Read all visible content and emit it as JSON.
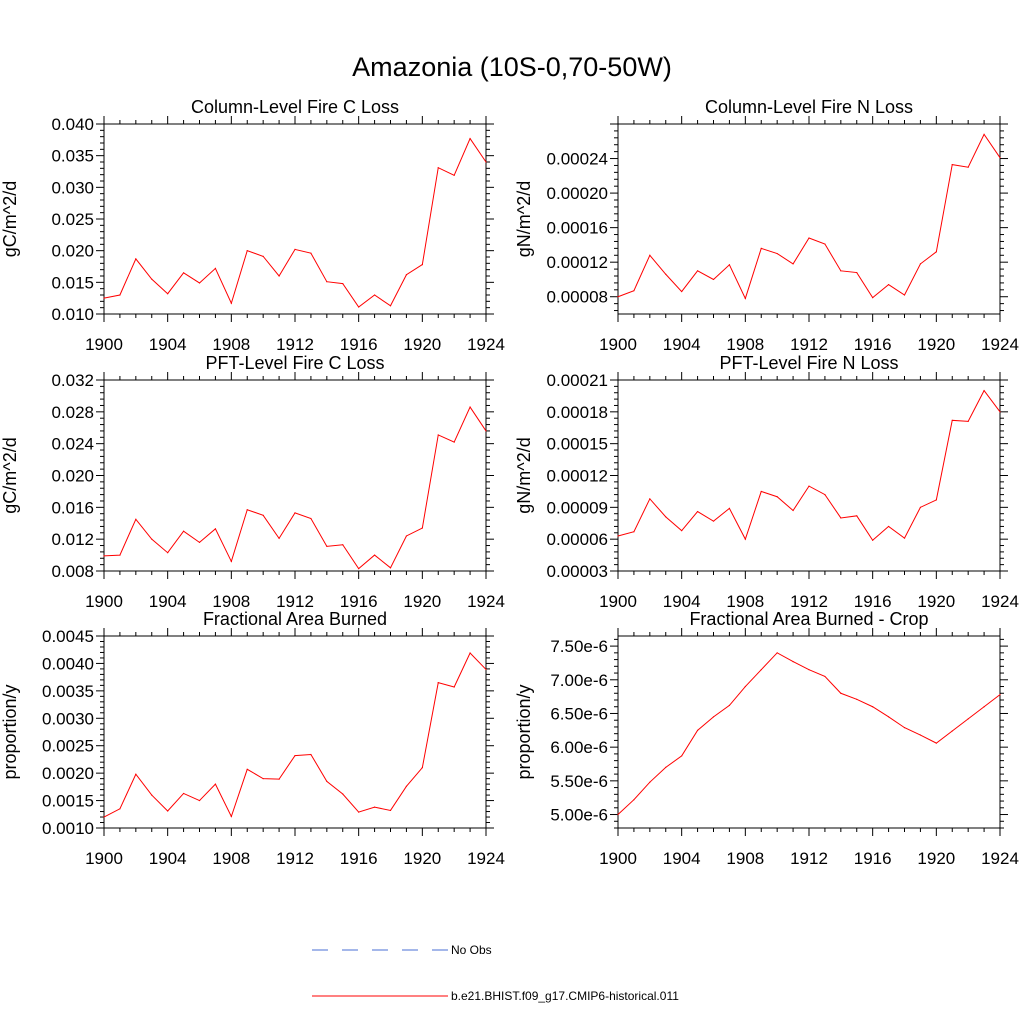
{
  "page": {
    "title": "Amazonia (10S-0,70-50W)"
  },
  "colors": {
    "model_line": "#ff0000",
    "obs_line": "#4a6fd6",
    "frame": "#000000"
  },
  "legend": {
    "items": [
      {
        "label": "No Obs",
        "style": "dashed",
        "color": "#4a6fd6"
      },
      {
        "label": "b.e21.BHIST.f09_g17.CMIP6-historical.011",
        "style": "solid",
        "color": "#ff0000"
      }
    ]
  },
  "chart_data": [
    {
      "type": "line",
      "title": "Column-Level Fire C Loss",
      "ylabel": "gC/m^2/d",
      "xlabel": "",
      "xlim": [
        1900,
        1924
      ],
      "ylim": [
        0.01,
        0.04
      ],
      "xticks": [
        "1900",
        "1904",
        "1908",
        "1912",
        "1916",
        "1920",
        "1924"
      ],
      "yticks": [
        "0.010",
        "0.015",
        "0.020",
        "0.025",
        "0.030",
        "0.035",
        "0.040"
      ],
      "x": [
        1900,
        1901,
        1902,
        1903,
        1904,
        1905,
        1906,
        1907,
        1908,
        1909,
        1910,
        1911,
        1912,
        1913,
        1914,
        1915,
        1916,
        1917,
        1918,
        1919,
        1920,
        1921,
        1922,
        1923,
        1924
      ],
      "series": [
        {
          "name": "b.e21.BHIST.f09_g17.CMIP6-historical.011",
          "values": [
            0.0125,
            0.013,
            0.0187,
            0.0155,
            0.0132,
            0.0165,
            0.0149,
            0.0172,
            0.0117,
            0.02,
            0.0191,
            0.016,
            0.0202,
            0.0196,
            0.0151,
            0.0148,
            0.0111,
            0.013,
            0.0113,
            0.0162,
            0.0178,
            0.0331,
            0.0319,
            0.0377,
            0.034
          ]
        }
      ]
    },
    {
      "type": "line",
      "title": "Column-Level Fire N Loss",
      "ylabel": "gN/m^2/d",
      "xlabel": "",
      "xlim": [
        1900,
        1924
      ],
      "ylim": [
        6e-05,
        0.00028
      ],
      "xticks": [
        "1900",
        "1904",
        "1908",
        "1912",
        "1916",
        "1920",
        "1924"
      ],
      "yticks": [
        "0.00008",
        "0.00012",
        "0.00016",
        "0.00020",
        "0.00024"
      ],
      "x": [
        1900,
        1901,
        1902,
        1903,
        1904,
        1905,
        1906,
        1907,
        1908,
        1909,
        1910,
        1911,
        1912,
        1913,
        1914,
        1915,
        1916,
        1917,
        1918,
        1919,
        1920,
        1921,
        1922,
        1923,
        1924
      ],
      "series": [
        {
          "name": "b.e21.BHIST.f09_g17.CMIP6-historical.011",
          "values": [
            8e-05,
            8.7e-05,
            0.000128,
            0.000106,
            8.6e-05,
            0.00011,
            0.0001,
            0.000117,
            7.8e-05,
            0.000136,
            0.00013,
            0.000118,
            0.000148,
            0.000141,
            0.00011,
            0.000108,
            7.9e-05,
            9.4e-05,
            8.2e-05,
            0.000118,
            0.000132,
            0.000233,
            0.00023,
            0.000268,
            0.000241
          ]
        }
      ]
    },
    {
      "type": "line",
      "title": "PFT-Level Fire C Loss",
      "ylabel": "gC/m^2/d",
      "xlabel": "",
      "xlim": [
        1900,
        1924
      ],
      "ylim": [
        0.008,
        0.032
      ],
      "xticks": [
        "1900",
        "1904",
        "1908",
        "1912",
        "1916",
        "1920",
        "1924"
      ],
      "yticks": [
        "0.008",
        "0.012",
        "0.016",
        "0.020",
        "0.024",
        "0.028",
        "0.032"
      ],
      "x": [
        1900,
        1901,
        1902,
        1903,
        1904,
        1905,
        1906,
        1907,
        1908,
        1909,
        1910,
        1911,
        1912,
        1913,
        1914,
        1915,
        1916,
        1917,
        1918,
        1919,
        1920,
        1921,
        1922,
        1923,
        1924
      ],
      "series": [
        {
          "name": "b.e21.BHIST.f09_g17.CMIP6-historical.011",
          "values": [
            0.0099,
            0.01,
            0.0145,
            0.012,
            0.0103,
            0.013,
            0.0116,
            0.0133,
            0.0092,
            0.0157,
            0.015,
            0.0121,
            0.0153,
            0.0146,
            0.0111,
            0.0113,
            0.0083,
            0.01,
            0.0084,
            0.0124,
            0.0134,
            0.0251,
            0.0242,
            0.0286,
            0.0256
          ]
        }
      ]
    },
    {
      "type": "line",
      "title": "PFT-Level Fire N Loss",
      "ylabel": "gN/m^2/d",
      "xlabel": "",
      "xlim": [
        1900,
        1924
      ],
      "ylim": [
        3e-05,
        0.00021
      ],
      "xticks": [
        "1900",
        "1904",
        "1908",
        "1912",
        "1916",
        "1920",
        "1924"
      ],
      "yticks": [
        "0.00003",
        "0.00006",
        "0.00009",
        "0.00012",
        "0.00015",
        "0.00018",
        "0.00021"
      ],
      "x": [
        1900,
        1901,
        1902,
        1903,
        1904,
        1905,
        1906,
        1907,
        1908,
        1909,
        1910,
        1911,
        1912,
        1913,
        1914,
        1915,
        1916,
        1917,
        1918,
        1919,
        1920,
        1921,
        1922,
        1923,
        1924
      ],
      "series": [
        {
          "name": "b.e21.BHIST.f09_g17.CMIP6-historical.011",
          "values": [
            6.3e-05,
            6.7e-05,
            9.8e-05,
            8.1e-05,
            6.8e-05,
            8.6e-05,
            7.7e-05,
            8.9e-05,
            6e-05,
            0.000105,
            0.0001,
            8.7e-05,
            0.00011,
            0.000102,
            8e-05,
            8.2e-05,
            5.9e-05,
            7.2e-05,
            6.1e-05,
            9e-05,
            9.7e-05,
            0.000172,
            0.000171,
            0.0002,
            0.00018
          ]
        }
      ]
    },
    {
      "type": "line",
      "title": "Fractional Area Burned",
      "ylabel": "proportion/y",
      "xlabel": "",
      "xlim": [
        1900,
        1924
      ],
      "ylim": [
        0.001,
        0.0045
      ],
      "xticks": [
        "1900",
        "1904",
        "1908",
        "1912",
        "1916",
        "1920",
        "1924"
      ],
      "yticks": [
        "0.0010",
        "0.0015",
        "0.0020",
        "0.0025",
        "0.0030",
        "0.0035",
        "0.0040",
        "0.0045"
      ],
      "x": [
        1900,
        1901,
        1902,
        1903,
        1904,
        1905,
        1906,
        1907,
        1908,
        1909,
        1910,
        1911,
        1912,
        1913,
        1914,
        1915,
        1916,
        1917,
        1918,
        1919,
        1920,
        1921,
        1922,
        1923,
        1924
      ],
      "series": [
        {
          "name": "b.e21.BHIST.f09_g17.CMIP6-historical.011",
          "values": [
            0.0012,
            0.00135,
            0.00198,
            0.0016,
            0.00131,
            0.00163,
            0.0015,
            0.0018,
            0.00121,
            0.00207,
            0.0019,
            0.00189,
            0.00232,
            0.00234,
            0.00185,
            0.00162,
            0.00129,
            0.00138,
            0.00132,
            0.00176,
            0.0021,
            0.00365,
            0.00357,
            0.00419,
            0.00389
          ]
        }
      ]
    },
    {
      "type": "line",
      "title": "Fractional Area Burned - Crop",
      "ylabel": "proportion/y",
      "xlabel": "",
      "xlim": [
        1900,
        1924
      ],
      "ylim": [
        4.8e-06,
        7.65e-06
      ],
      "xticks": [
        "1900",
        "1904",
        "1908",
        "1912",
        "1916",
        "1920",
        "1924"
      ],
      "yticks": [
        "5.00e-6",
        "5.50e-6",
        "6.00e-6",
        "6.50e-6",
        "7.00e-6",
        "7.50e-6"
      ],
      "x": [
        1900,
        1901,
        1902,
        1903,
        1904,
        1905,
        1906,
        1907,
        1908,
        1909,
        1910,
        1911,
        1912,
        1913,
        1914,
        1915,
        1916,
        1917,
        1918,
        1919,
        1920,
        1921,
        1922,
        1923,
        1924
      ],
      "series": [
        {
          "name": "b.e21.BHIST.f09_g17.CMIP6-historical.011",
          "values": [
            5e-06,
            5.22e-06,
            5.48e-06,
            5.7e-06,
            5.87e-06,
            6.25e-06,
            6.45e-06,
            6.62e-06,
            6.9e-06,
            7.15e-06,
            7.4e-06,
            7.27e-06,
            7.15e-06,
            7.05e-06,
            6.8e-06,
            6.71e-06,
            6.6e-06,
            6.45e-06,
            6.29e-06,
            6.18e-06,
            6.06e-06,
            6.24e-06,
            6.42e-06,
            6.6e-06,
            6.78e-06
          ]
        }
      ]
    }
  ]
}
